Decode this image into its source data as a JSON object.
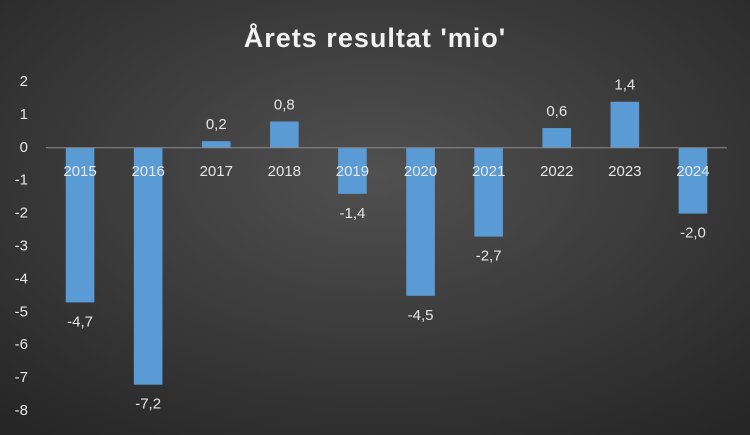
{
  "chart_data": {
    "type": "bar",
    "title": "Årets resultat 'mio'",
    "categories": [
      "2015",
      "2016",
      "2017",
      "2018",
      "2019",
      "2020",
      "2021",
      "2022",
      "2023",
      "2024"
    ],
    "values": [
      -4.7,
      -7.2,
      0.2,
      0.8,
      -1.4,
      -4.5,
      -2.7,
      0.6,
      1.4,
      -2.0
    ],
    "value_labels": [
      "-4,7",
      "-7,2",
      "0,2",
      "0,8",
      "-1,4",
      "-4,5",
      "-2,7",
      "0,6",
      "1,4",
      "-2,0"
    ],
    "color": "#5b9bd5",
    "ylim": [
      -8,
      2
    ],
    "yticks": [
      2,
      1,
      0,
      -1,
      -2,
      -3,
      -4,
      -5,
      -6,
      -7,
      -8
    ],
    "grid": false
  }
}
